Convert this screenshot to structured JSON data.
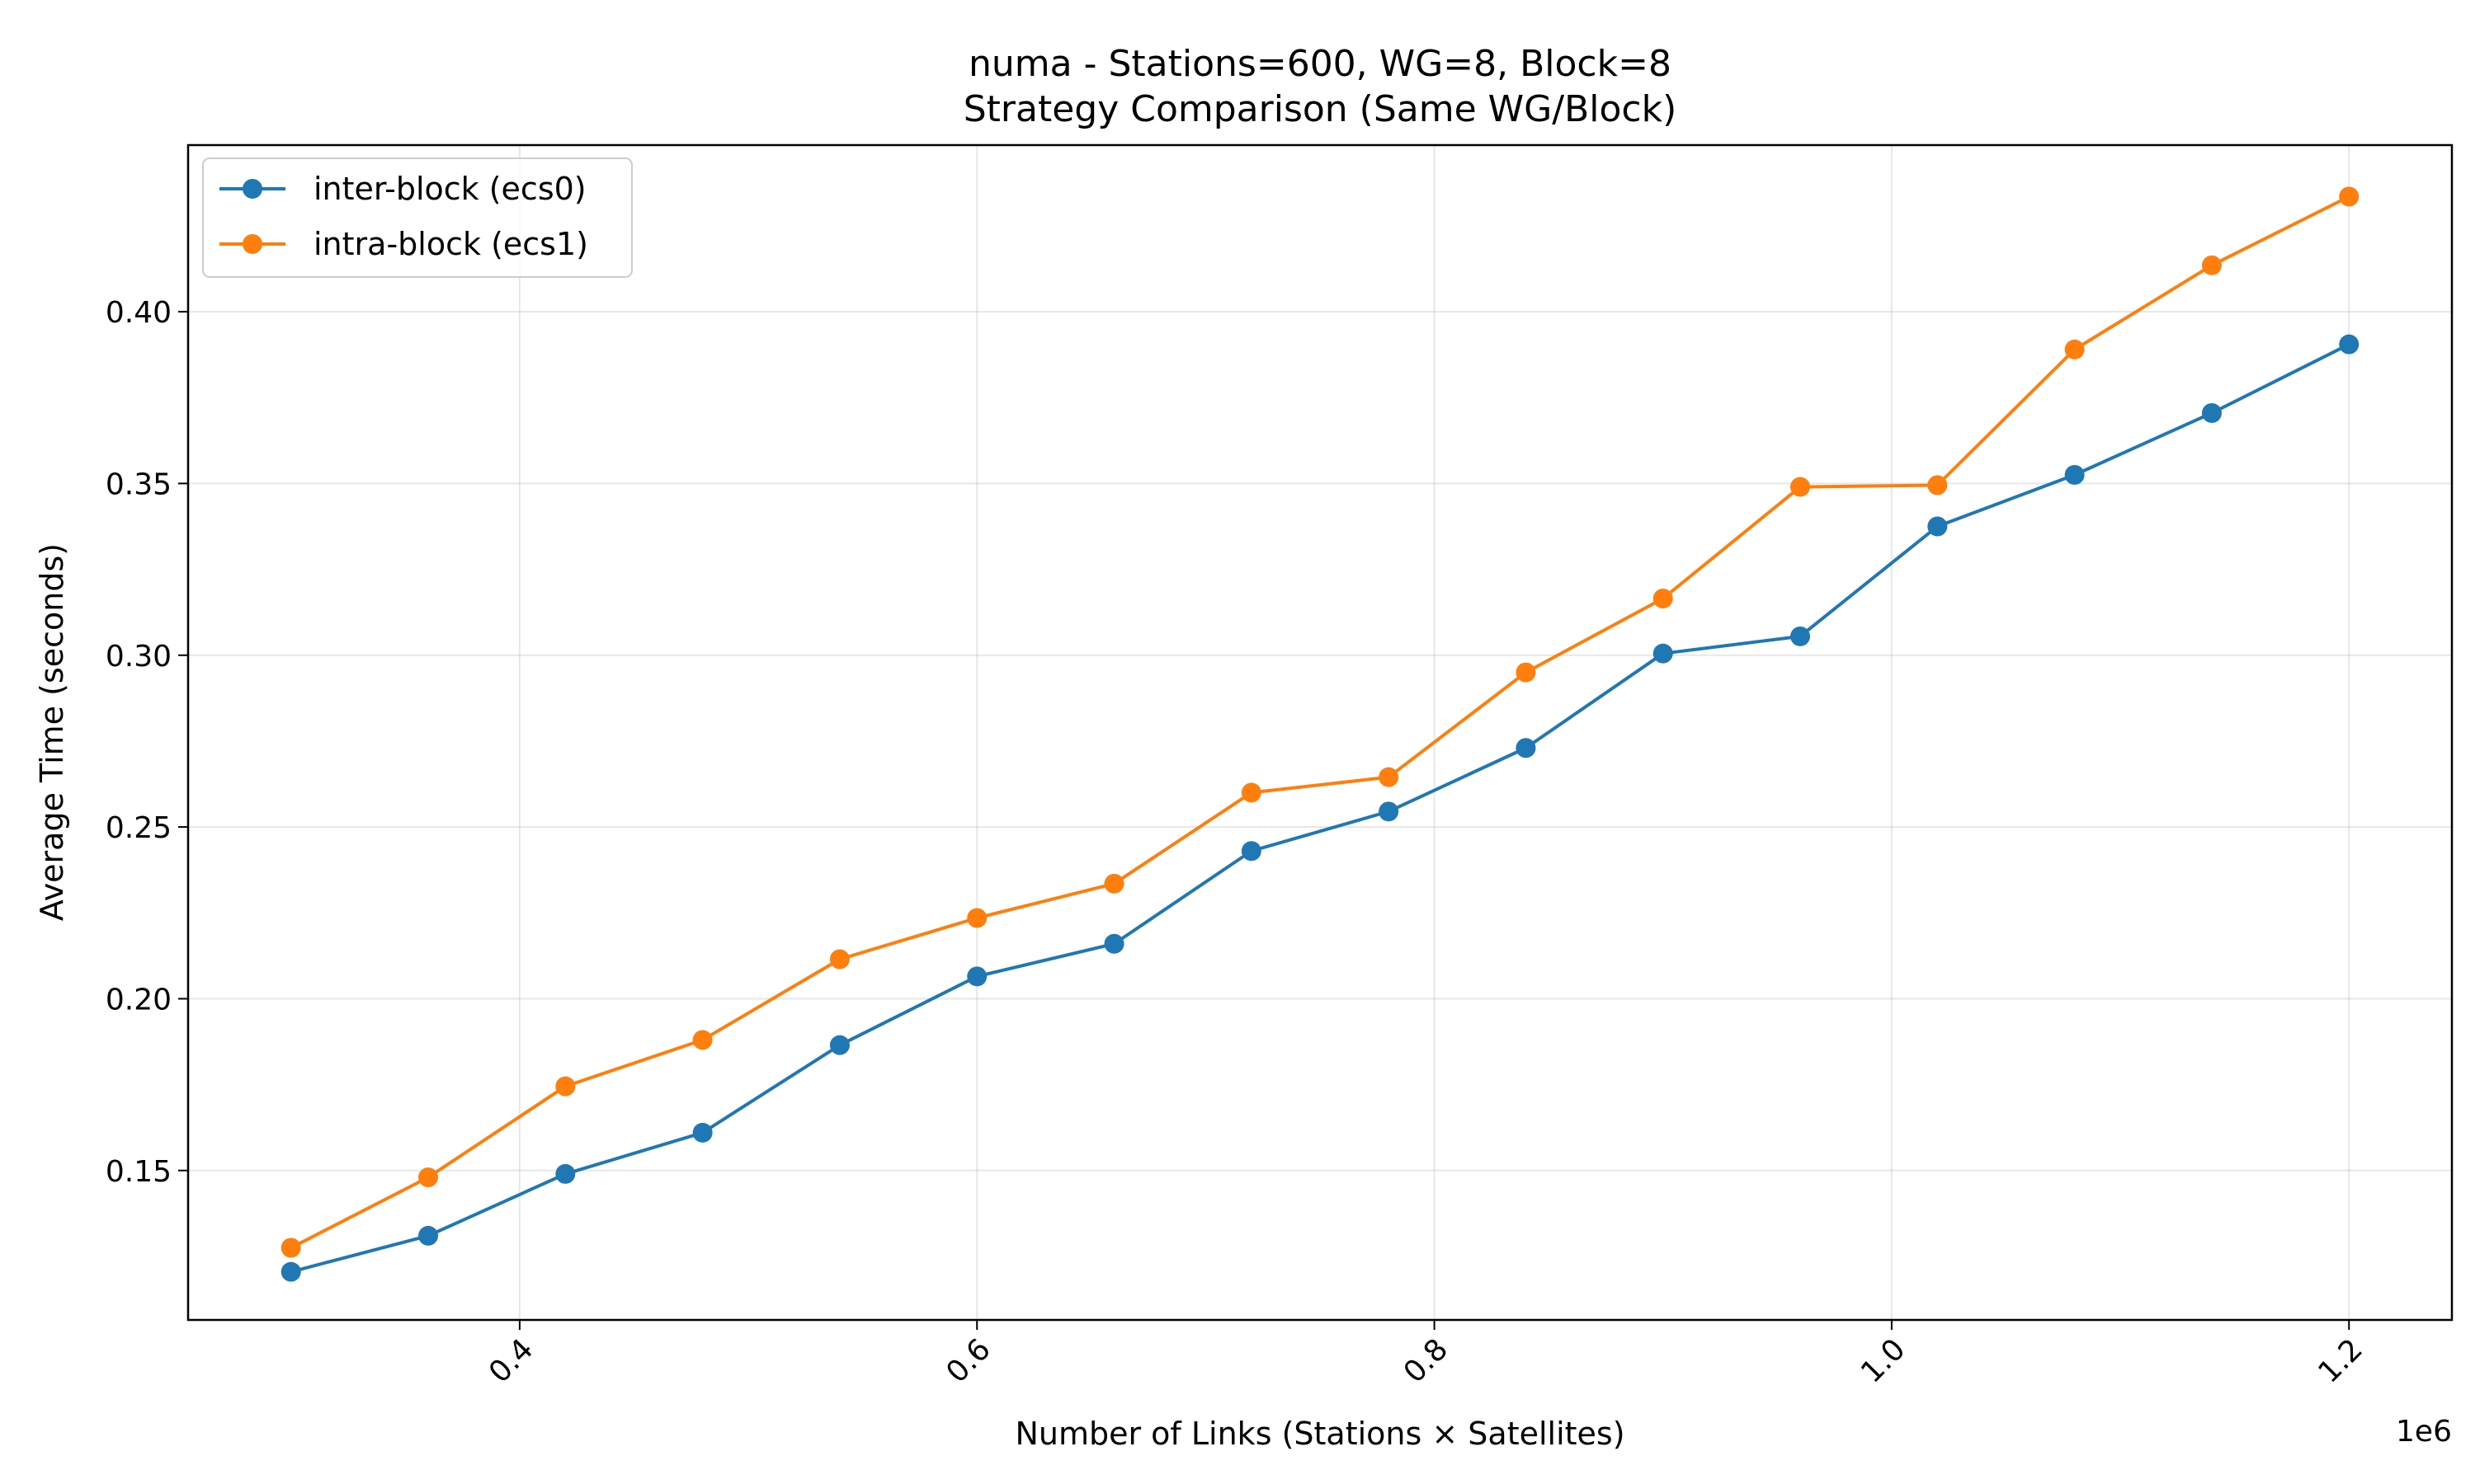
{
  "chart_data": {
    "type": "line",
    "title": "numa - Stations=600, WG=8, Block=8",
    "subtitle": "Strategy Comparison (Same WG/Block)",
    "xlabel": "Number of Links (Stations × Satellites)",
    "ylabel": "Average Time (seconds)",
    "x_offset_label": "1e6",
    "x_scale": 1000000,
    "xlim": [
      0.255,
      1.245
    ],
    "ylim": [
      0.1065,
      0.4485
    ],
    "xticks": [
      0.4,
      0.6,
      0.8,
      1.0,
      1.2
    ],
    "xtick_labels": [
      "0.4",
      "0.6",
      "0.8",
      "1.0",
      "1.2"
    ],
    "yticks": [
      0.15,
      0.2,
      0.25,
      0.3,
      0.35,
      0.4
    ],
    "ytick_labels": [
      "0.15",
      "0.20",
      "0.25",
      "0.30",
      "0.35",
      "0.40"
    ],
    "grid": true,
    "legend_position": "top-left",
    "x": [
      0.3,
      0.36,
      0.42,
      0.48,
      0.54,
      0.6,
      0.66,
      0.72,
      0.78,
      0.84,
      0.9,
      0.96,
      1.02,
      1.08,
      1.14,
      1.2
    ],
    "series": [
      {
        "name": "inter-block (ecs0)",
        "color": "#1f77b4",
        "values": [
          0.1205,
          0.131,
          0.149,
          0.161,
          0.1865,
          0.2065,
          0.216,
          0.243,
          0.2545,
          0.273,
          0.3005,
          0.3055,
          0.3375,
          0.3525,
          0.3705,
          0.3905
        ]
      },
      {
        "name": "intra-block (ecs1)",
        "color": "#ff7f0e",
        "values": [
          0.1275,
          0.148,
          0.1745,
          0.188,
          0.2115,
          0.2235,
          0.2335,
          0.26,
          0.2645,
          0.295,
          0.3165,
          0.349,
          0.3495,
          0.389,
          0.4135,
          0.4335
        ]
      }
    ]
  }
}
